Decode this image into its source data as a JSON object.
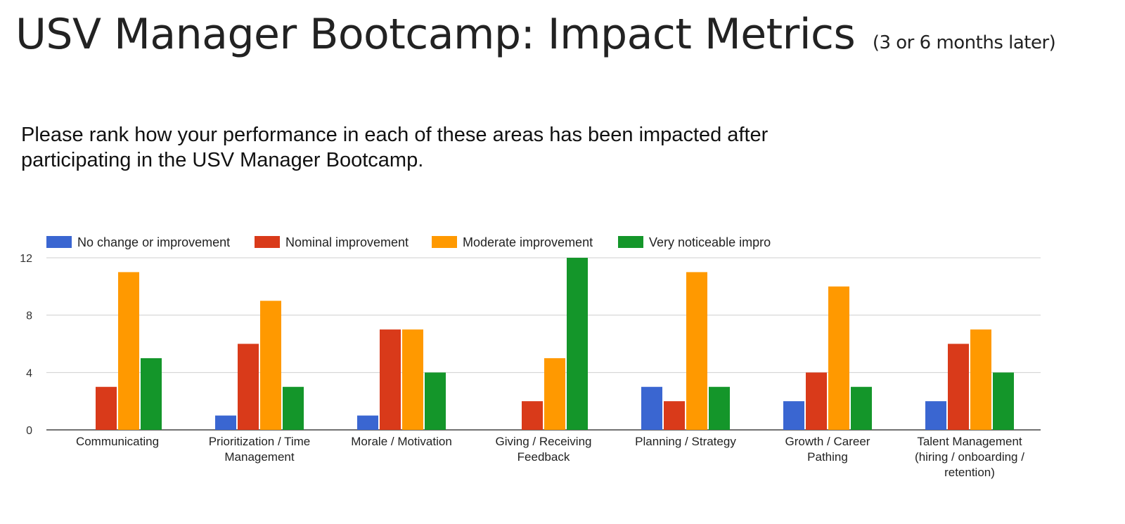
{
  "page": {
    "title": "USV Manager Bootcamp: Impact Metrics",
    "title_sub": "(3 or 6 months later)",
    "question": "Please rank how your performance in each of these areas has been impacted after participating in the USV Manager Bootcamp."
  },
  "chart_data": {
    "type": "bar",
    "categories": [
      [
        "Communicating"
      ],
      [
        "Prioritization / Time",
        "Management"
      ],
      [
        "Morale / Motivation"
      ],
      [
        "Giving / Receiving",
        "Feedback"
      ],
      [
        "Planning / Strategy"
      ],
      [
        "Growth / Career",
        "Pathing"
      ],
      [
        "Talent Management",
        "(hiring / onboarding /",
        "retention)"
      ]
    ],
    "series": [
      {
        "name": "No change or improvement",
        "color": "#3a66d1",
        "values": [
          0,
          1,
          1,
          0,
          3,
          2,
          2
        ]
      },
      {
        "name": "Nominal improvement",
        "color": "#d93a1a",
        "values": [
          3,
          6,
          7,
          2,
          2,
          4,
          6
        ]
      },
      {
        "name": "Moderate improvement",
        "color": "#ff9900",
        "values": [
          11,
          9,
          7,
          5,
          11,
          10,
          7
        ]
      },
      {
        "name": "Very noticeable impro",
        "color": "#14962a",
        "values": [
          5,
          3,
          4,
          12,
          3,
          3,
          4
        ]
      }
    ],
    "yticks": [
      0,
      4,
      8,
      12
    ],
    "ylim": [
      0,
      12
    ],
    "grid": true,
    "legend": "top"
  }
}
